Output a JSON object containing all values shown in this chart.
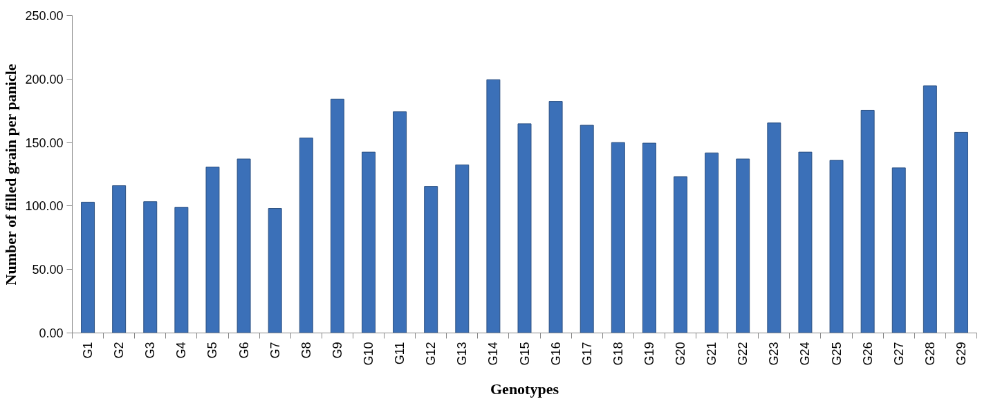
{
  "chart_data": {
    "type": "bar",
    "xlabel": "Genotypes",
    "ylabel": "Number of filled grain per panicle",
    "categories": [
      "G1",
      "G2",
      "G3",
      "G4",
      "G5",
      "G6",
      "G7",
      "G8",
      "G9",
      "G10",
      "G11",
      "G12",
      "G13",
      "G14",
      "G15",
      "G16",
      "G17",
      "G18",
      "G19",
      "G20",
      "G21",
      "G22",
      "G23",
      "G24",
      "G25",
      "G26",
      "G27",
      "G28",
      "G29"
    ],
    "values": [
      103,
      116,
      103.4,
      99,
      130.7,
      137,
      98,
      153.6,
      184.2,
      142.4,
      174.2,
      115.4,
      132.4,
      199.5,
      164.8,
      182.4,
      163.6,
      150,
      149.5,
      123,
      141.8,
      137,
      165.4,
      142.4,
      136,
      175.4,
      130,
      194.7,
      158
    ],
    "color": "#3b70b8",
    "ylim": [
      0,
      250
    ],
    "yticks": [
      {
        "value": 0,
        "label": "0.00"
      },
      {
        "value": 50,
        "label": "50.00"
      },
      {
        "value": 100,
        "label": "100.00"
      },
      {
        "value": 150,
        "label": "150.00"
      },
      {
        "value": 200,
        "label": "200.00"
      },
      {
        "value": 250,
        "label": "250.00"
      }
    ],
    "grid": false
  }
}
